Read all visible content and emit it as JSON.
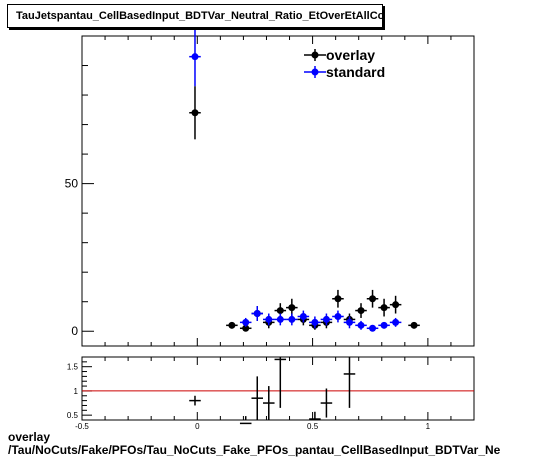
{
  "title": "TauJetspantau_CellBasedInput_BDTVar_Neutral_Ratio_EtOverEtAllConsts",
  "footer": {
    "line1": "overlay",
    "line2": "/Tau/NoCuts/Fake/PFOs/Tau_NoCuts_Fake_PFOs_pantau_CellBasedInput_BDTVar_Ne"
  },
  "colors": {
    "overlay": "#000000",
    "standard": "#0000ff",
    "ratio_line": "#cc0000"
  },
  "chart_data": [
    {
      "type": "scatter",
      "title": "TauJetspantau_CellBasedInput_BDTVar_Neutral_Ratio_EtOverEtAllConsts",
      "xlabel": "",
      "ylabel": "",
      "xlim": [
        -0.5,
        1.2
      ],
      "ylim": [
        -5,
        100
      ],
      "y_ticks": [
        0,
        50
      ],
      "grid": false,
      "legend_position": "top-right",
      "series": [
        {
          "name": "overlay",
          "x": [
            -0.01,
            0.15,
            0.21,
            0.26,
            0.31,
            0.36,
            0.41,
            0.46,
            0.51,
            0.56,
            0.61,
            0.66,
            0.71,
            0.76,
            0.81,
            0.86,
            0.94
          ],
          "y": [
            74,
            2,
            1,
            6,
            3,
            7,
            8,
            4,
            2,
            3,
            11,
            4,
            7,
            11,
            8,
            9,
            2
          ],
          "yerr": [
            9,
            1,
            1,
            2.5,
            2,
            2.5,
            3,
            2,
            1.5,
            2,
            3,
            2,
            2.5,
            3,
            3,
            3,
            1
          ]
        },
        {
          "name": "standard",
          "x": [
            -0.01,
            0.21,
            0.26,
            0.31,
            0.36,
            0.41,
            0.46,
            0.51,
            0.56,
            0.61,
            0.66,
            0.71,
            0.76,
            0.81,
            0.86
          ],
          "y": [
            93,
            3,
            6,
            4,
            4,
            4,
            5,
            3,
            4,
            5,
            3,
            2,
            1,
            2,
            3
          ],
          "yerr": [
            10,
            1.5,
            2.5,
            2,
            2,
            2,
            2,
            2,
            2,
            2,
            2,
            1.5,
            1,
            1,
            1.5
          ]
        }
      ]
    },
    {
      "type": "scatter",
      "title": "",
      "xlabel": "",
      "ylabel": "",
      "xlim": [
        -0.5,
        1.2
      ],
      "ylim": [
        0.4,
        1.7
      ],
      "x_ticks": [
        -0.5,
        0,
        0.5,
        1
      ],
      "y_ticks": [
        0.5,
        1,
        1.5
      ],
      "reference_line": 1,
      "series": [
        {
          "x": [
            -0.01,
            0.21,
            0.26,
            0.31,
            0.36,
            0.51,
            0.56,
            0.66
          ],
          "y": [
            0.8,
            0.33,
            0.85,
            0.75,
            1.65,
            0.42,
            0.75,
            1.35
          ],
          "yerr": [
            0.1,
            0.15,
            0.45,
            0.35,
            1.0,
            0.15,
            0.3,
            0.7
          ]
        }
      ]
    }
  ]
}
